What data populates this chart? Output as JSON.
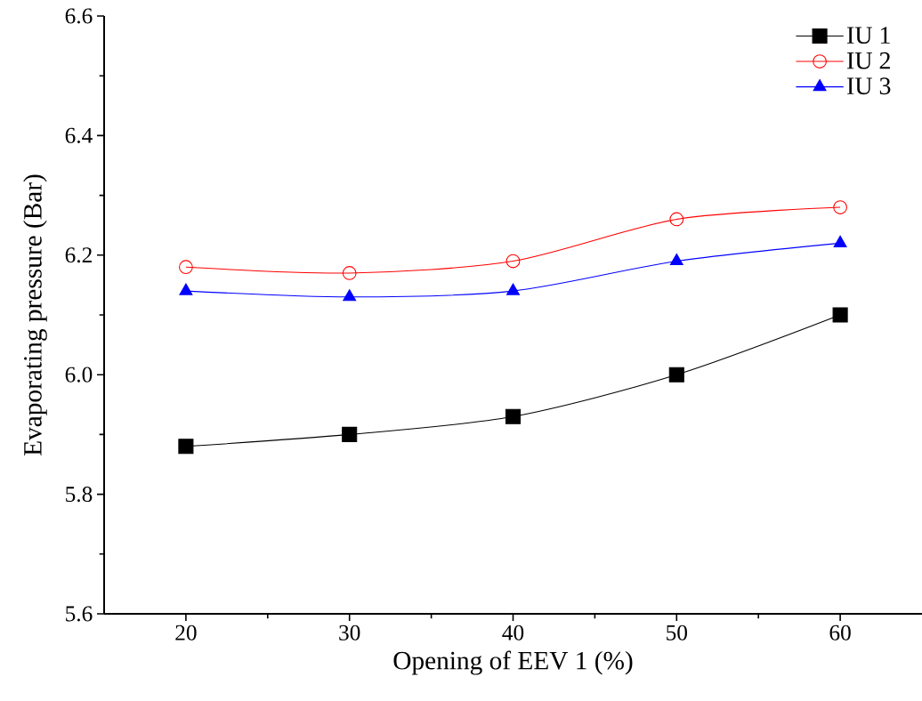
{
  "chart_data": {
    "type": "line",
    "xlabel": "Opening of EEV 1 (%)",
    "ylabel": "Evaporating pressure (Bar)",
    "x": [
      20,
      30,
      40,
      50,
      60
    ],
    "series": [
      {
        "name": "IU 1",
        "color": "#000000",
        "marker": "square",
        "values": [
          5.88,
          5.9,
          5.93,
          6.0,
          6.1
        ]
      },
      {
        "name": "IU 2",
        "color": "#ff0000",
        "marker": "circle",
        "values": [
          6.18,
          6.17,
          6.19,
          6.26,
          6.28
        ]
      },
      {
        "name": "IU 3",
        "color": "#0000ff",
        "marker": "triangle",
        "values": [
          6.14,
          6.13,
          6.14,
          6.19,
          6.22
        ]
      }
    ],
    "xlim": [
      15,
      65
    ],
    "ylim": [
      5.6,
      6.6
    ],
    "xticks": [
      20,
      {
        "value": 25,
        "label": null
      },
      30,
      {
        "value": 35,
        "label": null
      },
      40,
      {
        "value": 45,
        "label": null
      },
      50,
      {
        "value": 55,
        "label": null
      },
      60
    ],
    "yticks": [
      5.6,
      {
        "value": 5.7,
        "label": null
      },
      5.8,
      {
        "value": 5.9,
        "label": null
      },
      {
        "value": 6.0,
        "label": "6.0"
      },
      {
        "value": 6.1,
        "label": null
      },
      6.2,
      {
        "value": 6.3,
        "label": null
      },
      6.4,
      {
        "value": 6.5,
        "label": null
      },
      6.6
    ],
    "grid": false,
    "legend": "top right",
    "line_style": "solid"
  }
}
